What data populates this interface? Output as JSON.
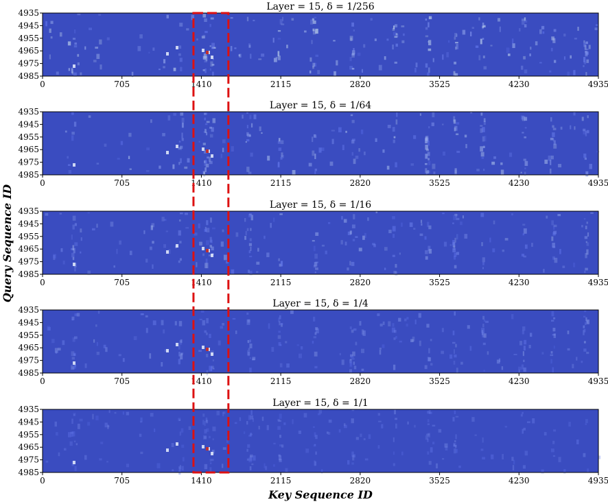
{
  "chart_data": [
    {
      "type": "heatmap",
      "title": "Layer = 15,   δ = 1/256",
      "xticks": [
        "0",
        "705",
        "1410",
        "2115",
        "2820",
        "3525",
        "4230",
        "4935"
      ],
      "yticks": [
        "4935",
        "4945",
        "4955",
        "4965",
        "4975",
        "4985"
      ],
      "xlim": [
        0,
        4935
      ],
      "ylim": [
        4935,
        4985
      ]
    },
    {
      "type": "heatmap",
      "title": "Layer = 15,   δ = 1/64",
      "xticks": [
        "0",
        "705",
        "1410",
        "2115",
        "2820",
        "3525",
        "4230",
        "4935"
      ],
      "yticks": [
        "4935",
        "4945",
        "4955",
        "4965",
        "4975",
        "4985"
      ],
      "xlim": [
        0,
        4935
      ],
      "ylim": [
        4935,
        4985
      ]
    },
    {
      "type": "heatmap",
      "title": "Layer = 15,   δ = 1/16",
      "xticks": [
        "0",
        "705",
        "1410",
        "2115",
        "2820",
        "3525",
        "4230",
        "4935"
      ],
      "yticks": [
        "4935",
        "4945",
        "4955",
        "4965",
        "4975",
        "4985"
      ],
      "xlim": [
        0,
        4935
      ],
      "ylim": [
        4935,
        4985
      ]
    },
    {
      "type": "heatmap",
      "title": "Layer = 15,   δ = 1/4",
      "xticks": [
        "0",
        "705",
        "1410",
        "2115",
        "2820",
        "3525",
        "4230",
        "4935"
      ],
      "yticks": [
        "4935",
        "4945",
        "4955",
        "4965",
        "4975",
        "4985"
      ],
      "xlim": [
        0,
        4935
      ],
      "ylim": [
        4935,
        4985
      ]
    },
    {
      "type": "heatmap",
      "title": "Layer = 15,   δ = 1/1",
      "xticks": [
        "0",
        "705",
        "1410",
        "2115",
        "2820",
        "3525",
        "4230",
        "4935"
      ],
      "yticks": [
        "4935",
        "4945",
        "4955",
        "4965",
        "4975",
        "4985"
      ],
      "xlim": [
        0,
        4935
      ],
      "ylim": [
        4935,
        4985
      ]
    }
  ],
  "shared": {
    "xlabel": "Key Sequence ID",
    "ylabel": "Query Sequence ID",
    "highlight_x_range": [
      1340,
      1650
    ],
    "colors": {
      "background": "#3a4cc0",
      "highlight_box": "#dd1111"
    }
  }
}
